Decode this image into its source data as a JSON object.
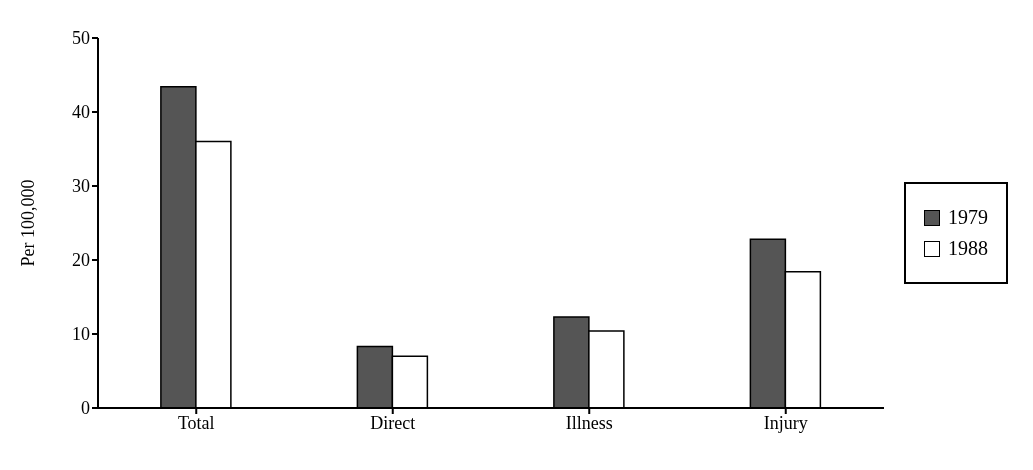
{
  "chart_data": {
    "type": "bar",
    "ylabel": "Per 100,000",
    "categories": [
      "Total",
      "Direct",
      "Illness",
      "Injury"
    ],
    "series": [
      {
        "name": "1979",
        "color": "#555555",
        "values": [
          43.4,
          8.3,
          12.3,
          22.8
        ]
      },
      {
        "name": "1988",
        "color": "#ffffff",
        "values": [
          36.0,
          7.0,
          10.4,
          18.4
        ]
      }
    ],
    "ylim": [
      0,
      50
    ],
    "yticks": [
      0,
      10,
      20,
      30,
      40,
      50
    ],
    "grid": false,
    "legend": "right"
  }
}
